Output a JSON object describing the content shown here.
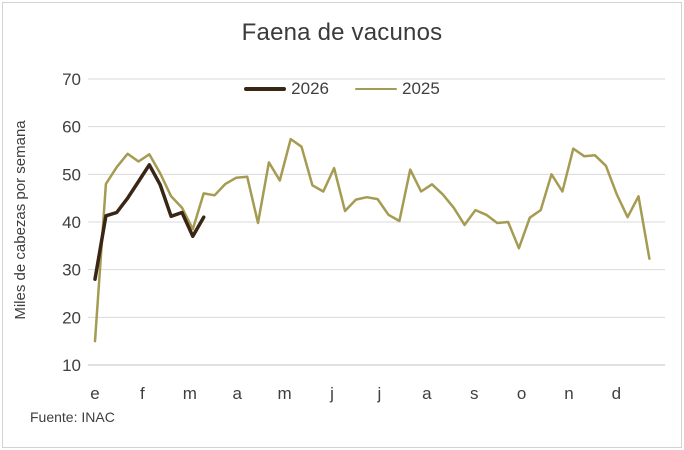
{
  "chart_data": {
    "type": "line",
    "title": "Faena de vacunos",
    "ylabel": "Miles de cabezas por semana",
    "xlabel": "",
    "source": "Fuente: INAC",
    "x_unit": "semana (weekly points)",
    "month_labels": [
      "e",
      "f",
      "m",
      "a",
      "m",
      "j",
      "j",
      "a",
      "s",
      "o",
      "n",
      "d"
    ],
    "y_ticks": [
      70,
      60,
      50,
      40,
      30,
      20,
      10
    ],
    "ylim": [
      10,
      70
    ],
    "grid": "horizontal",
    "legend_position": "top-center",
    "colors": {
      "text": "#3f3f3f",
      "gridline": "#d9d9d9",
      "axis_line": "#c0c0c0",
      "series_2026": "#3a2614",
      "series_2025": "#a59b52"
    },
    "series": [
      {
        "name": "2026",
        "color": "#3a2614",
        "line_width": 3.5,
        "start_week": 1,
        "values": [
          28,
          41.3,
          42,
          45,
          48.5,
          52,
          47.8,
          41.2,
          42,
          37,
          41
        ]
      },
      {
        "name": "2025",
        "color": "#a59b52",
        "line_width": 2.5,
        "start_week": 1,
        "values": [
          15,
          48,
          51.5,
          54.3,
          52.7,
          54.2,
          50.2,
          45.4,
          43,
          38.5,
          46,
          45.6,
          48,
          49.3,
          49.5,
          39.8,
          52.5,
          48.7,
          57.4,
          55.8,
          47.7,
          46.4,
          51.3,
          42.3,
          44.7,
          45.2,
          44.8,
          41.5,
          40.2,
          51,
          46.4,
          47.9,
          45.8,
          43,
          39.4,
          42.5,
          41.5,
          39.8,
          40,
          34.5,
          40.9,
          42.5,
          50,
          46.4,
          55.4,
          53.8,
          54,
          51.8,
          45.8,
          41,
          45.4,
          32.3
        ]
      }
    ]
  }
}
